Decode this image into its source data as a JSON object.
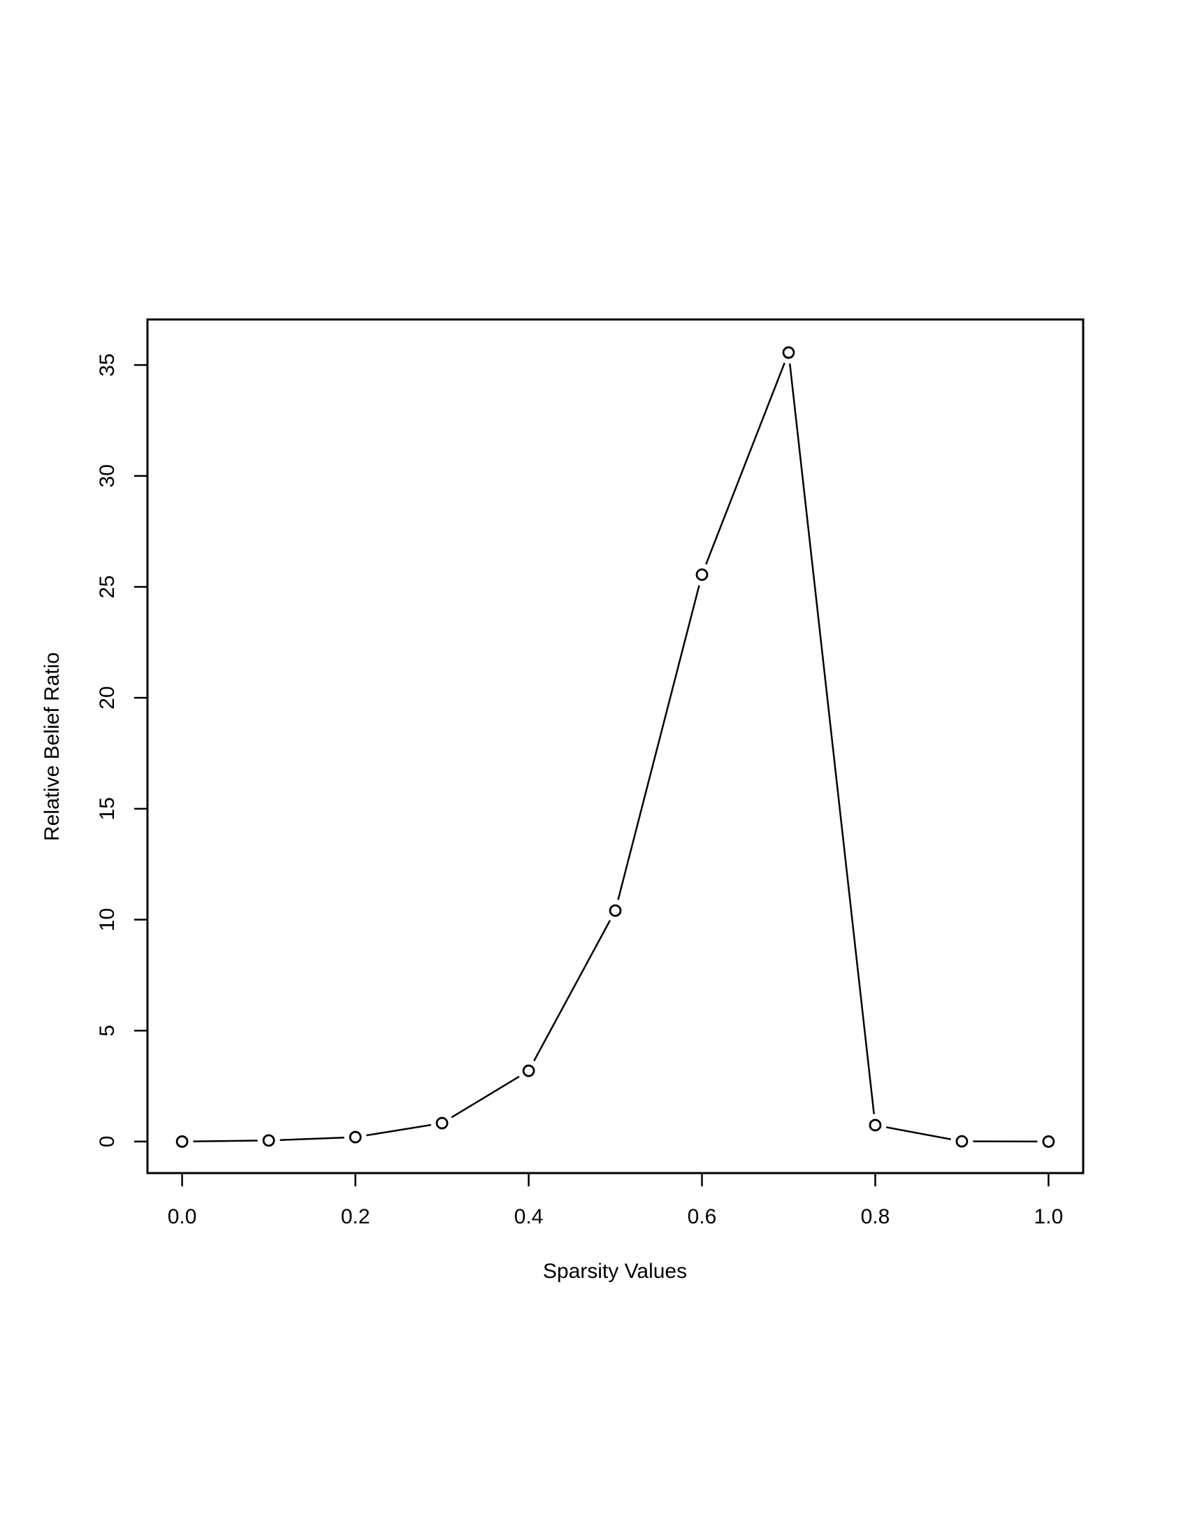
{
  "chart_data": {
    "type": "line",
    "x_label": "Sparsity Values",
    "y_label": "Relative Belief Ratio",
    "x": [
      0,
      0.1,
      0.2,
      0.3,
      0.4,
      0.5,
      0.6,
      0.7,
      0.8,
      0.9,
      1
    ],
    "values": [
      0,
      0.05,
      0.2,
      0.83,
      3.19,
      10.41,
      25.55,
      35.56,
      0.74,
      0.01,
      0
    ],
    "color": "#000000",
    "xlim": [
      -0.04,
      1.04
    ],
    "ylim": [
      -1.42,
      37.05
    ],
    "xticks": [
      {
        "value": 0,
        "label": "0.0"
      },
      0.2,
      0.4,
      0.6,
      0.8,
      {
        "value": 1,
        "label": "1.0"
      }
    ],
    "yticks": [
      0,
      5,
      10,
      15,
      20,
      25,
      30,
      35
    ]
  }
}
